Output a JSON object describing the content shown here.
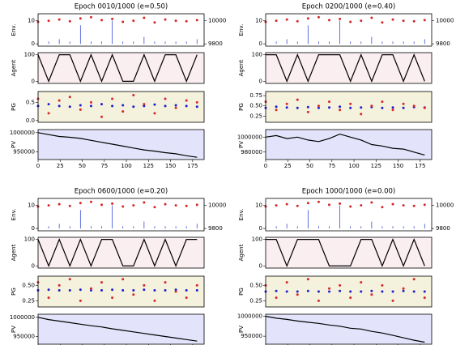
{
  "chart_data": [
    {
      "type": "line",
      "title": "Epoch 0010/1000 (e=0.50)",
      "x": [
        0,
        12,
        24,
        36,
        48,
        60,
        72,
        84,
        96,
        108,
        120,
        132,
        144,
        156,
        168,
        180
      ],
      "xlim": [
        0,
        188
      ],
      "xticks": [
        0,
        25,
        50,
        75,
        100,
        125,
        150,
        175
      ],
      "panels": [
        {
          "ylabel": "Env.",
          "ylim": [
            -1,
            13
          ],
          "yticks": [
            0,
            10
          ],
          "y2lim": [
            9780,
            10060
          ],
          "y2ticks": [
            9800,
            10000
          ],
          "series": [
            {
              "style": "stem",
              "color": "#3b4fd8",
              "values": [
                1,
                1,
                2,
                1,
                8,
                1,
                1,
                10,
                1,
                1,
                3,
                1,
                1,
                1,
                1,
                2
              ]
            },
            {
              "style": "dots",
              "color": "#d62728",
              "axis": "y2",
              "values": [
                9990,
                10000,
                10010,
                9995,
                10020,
                10030,
                10005,
                10015,
                9990,
                10000,
                10025,
                9985,
                10010,
                10000,
                9995,
                10005
              ]
            }
          ]
        },
        {
          "ylabel": "Agent",
          "ylim": [
            -8,
            108
          ],
          "yticks": [
            0,
            100
          ],
          "series": [
            {
              "style": "line",
              "color": "#000000",
              "values": [
                100,
                0,
                100,
                100,
                0,
                100,
                0,
                100,
                0,
                0,
                100,
                0,
                100,
                100,
                0,
                100
              ]
            }
          ]
        },
        {
          "ylabel": "PG",
          "ylim": [
            -0.05,
            0.8
          ],
          "yticks": [
            {
              "value": 0,
              "label": "0.0"
            },
            0.5
          ],
          "series": [
            {
              "style": "dots",
              "color": "#1f1fd0",
              "values": [
                0.4,
                0.45,
                0.4,
                0.38,
                0.42,
                0.4,
                0.45,
                0.4,
                0.42,
                0.38,
                0.4,
                0.44,
                0.4,
                0.42,
                0.4,
                0.38
              ]
            },
            {
              "style": "dots",
              "color": "#d62728",
              "values": [
                0.6,
                0.2,
                0.55,
                0.65,
                0.3,
                0.5,
                0.1,
                0.6,
                0.25,
                0.7,
                0.45,
                0.2,
                0.6,
                0.35,
                0.55,
                0.5
              ]
            }
          ]
        },
        {
          "ylabel": "PV",
          "ylim": [
            930000,
            1008000
          ],
          "yticks": [
            950000,
            1000000
          ],
          "series": [
            {
              "style": "line",
              "color": "#000000",
              "values": [
                1000000,
                995000,
                990000,
                988000,
                985000,
                980000,
                975000,
                970000,
                965000,
                960000,
                955000,
                952000,
                948000,
                945000,
                940000,
                936000
              ]
            }
          ]
        }
      ]
    },
    {
      "type": "line",
      "title": "Epoch 0200/1000 (e=0.40)",
      "x": [
        0,
        12,
        24,
        36,
        48,
        60,
        72,
        84,
        96,
        108,
        120,
        132,
        144,
        156,
        168,
        180
      ],
      "xlim": [
        0,
        188
      ],
      "xticks": [
        0,
        25,
        50,
        75,
        100,
        125,
        150,
        175
      ],
      "panels": [
        {
          "ylabel": "Env.",
          "ylim": [
            -1,
            13
          ],
          "yticks": [
            0,
            10
          ],
          "y2lim": [
            9780,
            10060
          ],
          "y2ticks": [
            9800,
            10000
          ],
          "series": [
            {
              "style": "stem",
              "color": "#3b4fd8",
              "values": [
                1,
                1,
                2,
                1,
                8,
                1,
                1,
                10,
                1,
                1,
                3,
                1,
                1,
                1,
                1,
                2
              ]
            },
            {
              "style": "dots",
              "color": "#d62728",
              "axis": "y2",
              "values": [
                9990,
                10000,
                10010,
                9995,
                10020,
                10030,
                10005,
                10015,
                9990,
                10000,
                10025,
                9985,
                10010,
                10000,
                9995,
                10005
              ]
            }
          ]
        },
        {
          "ylabel": "Agent",
          "ylim": [
            -8,
            108
          ],
          "yticks": [
            0,
            100
          ],
          "series": [
            {
              "style": "line",
              "color": "#000000",
              "values": [
                100,
                100,
                0,
                100,
                0,
                100,
                100,
                100,
                0,
                100,
                0,
                100,
                100,
                0,
                100,
                0
              ]
            }
          ]
        },
        {
          "ylabel": "PG",
          "ylim": [
            0.1,
            0.85
          ],
          "yticks": [
            0.25,
            {
              "value": 0.5,
              "label": "0.50"
            },
            0.75
          ],
          "series": [
            {
              "style": "dots",
              "color": "#1f1fd0",
              "values": [
                0.45,
                0.48,
                0.46,
                0.45,
                0.47,
                0.45,
                0.46,
                0.48,
                0.45,
                0.46,
                0.47,
                0.45,
                0.46,
                0.45,
                0.47,
                0.46
              ]
            },
            {
              "style": "dots",
              "color": "#d62728",
              "values": [
                0.6,
                0.4,
                0.55,
                0.65,
                0.35,
                0.5,
                0.6,
                0.4,
                0.55,
                0.3,
                0.5,
                0.6,
                0.4,
                0.55,
                0.5,
                0.45
              ]
            }
          ]
        },
        {
          "ylabel": "PV",
          "ylim": [
            970000,
            1010000
          ],
          "yticks": [
            980000,
            1000000
          ],
          "series": [
            {
              "style": "line",
              "color": "#000000",
              "values": [
                1000000,
                1002000,
                998000,
                1000000,
                996000,
                994000,
                998000,
                1004000,
                1000000,
                996000,
                990000,
                988000,
                985000,
                984000,
                980000,
                976000
              ]
            }
          ]
        }
      ]
    },
    {
      "type": "line",
      "title": "Epoch 0600/1000 (e=0.20)",
      "x": [
        0,
        12,
        24,
        36,
        48,
        60,
        72,
        84,
        96,
        108,
        120,
        132,
        144,
        156,
        168,
        180
      ],
      "xlim": [
        0,
        188
      ],
      "xticks": [
        0,
        25,
        50,
        75,
        100,
        125,
        150,
        175
      ],
      "panels": [
        {
          "ylabel": "Env.",
          "ylim": [
            -1,
            13
          ],
          "yticks": [
            0,
            10
          ],
          "y2lim": [
            9780,
            10060
          ],
          "y2ticks": [
            9800,
            10000
          ],
          "series": [
            {
              "style": "stem",
              "color": "#3b4fd8",
              "values": [
                1,
                1,
                2,
                1,
                8,
                1,
                1,
                10,
                1,
                1,
                3,
                1,
                1,
                1,
                1,
                2
              ]
            },
            {
              "style": "dots",
              "color": "#d62728",
              "axis": "y2",
              "values": [
                9990,
                10000,
                10010,
                9995,
                10020,
                10030,
                10005,
                10015,
                9990,
                10000,
                10025,
                9985,
                10010,
                10000,
                9995,
                10005
              ]
            }
          ]
        },
        {
          "ylabel": "Agent",
          "ylim": [
            -8,
            108
          ],
          "yticks": [
            0,
            100
          ],
          "series": [
            {
              "style": "line",
              "color": "#000000",
              "values": [
                100,
                0,
                100,
                0,
                100,
                0,
                100,
                100,
                0,
                0,
                100,
                0,
                100,
                0,
                100,
                100
              ]
            }
          ]
        },
        {
          "ylabel": "PG",
          "ylim": [
            0.15,
            0.65
          ],
          "yticks": [
            0.25,
            {
              "value": 0.5,
              "label": "0.50"
            }
          ],
          "series": [
            {
              "style": "dots",
              "color": "#1f1fd0",
              "values": [
                0.42,
                0.43,
                0.42,
                0.42,
                0.43,
                0.42,
                0.42,
                0.43,
                0.42,
                0.42,
                0.43,
                0.42,
                0.42,
                0.43,
                0.42,
                0.42
              ]
            },
            {
              "style": "dots",
              "color": "#d62728",
              "values": [
                0.55,
                0.3,
                0.5,
                0.6,
                0.25,
                0.45,
                0.55,
                0.3,
                0.6,
                0.35,
                0.5,
                0.25,
                0.55,
                0.4,
                0.3,
                0.5
              ]
            }
          ]
        },
        {
          "ylabel": "PV",
          "ylim": [
            930000,
            1008000
          ],
          "yticks": [
            950000,
            1000000
          ],
          "series": [
            {
              "style": "line",
              "color": "#000000",
              "values": [
                1000000,
                994000,
                990000,
                986000,
                982000,
                978000,
                975000,
                970000,
                966000,
                962000,
                958000,
                954000,
                950000,
                946000,
                942000,
                938000
              ]
            }
          ]
        }
      ]
    },
    {
      "type": "line",
      "title": "Epoch 1000/1000 (e=0.00)",
      "x": [
        0,
        12,
        24,
        36,
        48,
        60,
        72,
        84,
        96,
        108,
        120,
        132,
        144,
        156,
        168,
        180
      ],
      "xlim": [
        0,
        188
      ],
      "xticks": [
        0,
        25,
        50,
        75,
        100,
        125,
        150,
        175
      ],
      "panels": [
        {
          "ylabel": "Env.",
          "ylim": [
            -1,
            13
          ],
          "yticks": [
            0,
            10
          ],
          "y2lim": [
            9780,
            10060
          ],
          "y2ticks": [
            9800,
            10000
          ],
          "series": [
            {
              "style": "stem",
              "color": "#3b4fd8",
              "values": [
                1,
                1,
                2,
                1,
                8,
                1,
                1,
                10,
                1,
                1,
                3,
                1,
                1,
                1,
                1,
                2
              ]
            },
            {
              "style": "dots",
              "color": "#d62728",
              "axis": "y2",
              "values": [
                9990,
                10000,
                10010,
                9995,
                10020,
                10030,
                10005,
                10015,
                9990,
                10000,
                10025,
                9985,
                10010,
                10000,
                9995,
                10005
              ]
            }
          ]
        },
        {
          "ylabel": "Agent",
          "ylim": [
            -8,
            108
          ],
          "yticks": [
            0,
            100
          ],
          "series": [
            {
              "style": "line",
              "color": "#000000",
              "values": [
                100,
                100,
                0,
                100,
                100,
                100,
                0,
                0,
                0,
                100,
                100,
                0,
                100,
                0,
                100,
                0
              ]
            }
          ]
        },
        {
          "ylabel": "PG",
          "ylim": [
            0.15,
            0.65
          ],
          "yticks": [
            0.25,
            {
              "value": 0.5,
              "label": "0.50"
            }
          ],
          "series": [
            {
              "style": "dots",
              "color": "#1f1fd0",
              "values": [
                0.4,
                0.41,
                0.4,
                0.4,
                0.41,
                0.4,
                0.4,
                0.41,
                0.4,
                0.4,
                0.41,
                0.4,
                0.4,
                0.41,
                0.4,
                0.4
              ]
            },
            {
              "style": "dots",
              "color": "#d62728",
              "values": [
                0.5,
                0.3,
                0.55,
                0.35,
                0.6,
                0.25,
                0.45,
                0.5,
                0.3,
                0.55,
                0.35,
                0.5,
                0.25,
                0.45,
                0.6,
                0.3
              ]
            }
          ]
        },
        {
          "ylabel": "PV",
          "ylim": [
            930000,
            1005000
          ],
          "yticks": [
            950000,
            1000000
          ],
          "series": [
            {
              "style": "line",
              "color": "#000000",
              "values": [
                1000000,
                995000,
                992000,
                988000,
                985000,
                982000,
                978000,
                975000,
                970000,
                968000,
                962000,
                958000,
                952000,
                946000,
                940000,
                935000
              ]
            }
          ]
        }
      ]
    }
  ]
}
